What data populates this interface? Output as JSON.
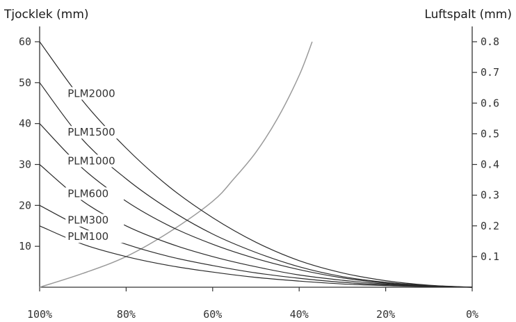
{
  "chart_data": {
    "type": "line",
    "left_axis": {
      "title": "Tjocklek (mm)",
      "ticks": [
        10,
        20,
        30,
        40,
        50,
        60
      ],
      "tick_labels": [
        "10",
        "20",
        "30",
        "40",
        "50",
        "60"
      ],
      "range": [
        0,
        60
      ]
    },
    "right_axis": {
      "title": "Luftspalt (mm)",
      "ticks": [
        0.1,
        0.2,
        0.3,
        0.4,
        0.5,
        0.6,
        0.7,
        0.8
      ],
      "tick_labels": [
        "0.1",
        "0.2",
        "0.3",
        "0.4",
        "0.5",
        "0.6",
        "0.7",
        "0.8"
      ],
      "range": [
        0,
        0.8
      ]
    },
    "x_axis": {
      "ticks": [
        100,
        80,
        60,
        40,
        20,
        0
      ],
      "tick_labels": [
        "100%",
        "80%",
        "60%",
        "40%",
        "20%",
        "0%"
      ],
      "range": [
        100,
        0
      ]
    },
    "x": [
      100,
      90,
      80,
      70,
      60,
      50,
      40,
      30,
      20,
      10,
      0
    ],
    "series": [
      {
        "name": "PLM2000",
        "axis": "left",
        "values": [
          60,
          45.5,
          34,
          24.5,
          17,
          11,
          6.5,
          3.5,
          1.6,
          0.5,
          0
        ]
      },
      {
        "name": "PLM1500",
        "axis": "left",
        "values": [
          50,
          36,
          26.5,
          19,
          13,
          8.5,
          5,
          2.6,
          1.2,
          0.4,
          0
        ]
      },
      {
        "name": "PLM1000",
        "axis": "left",
        "values": [
          40,
          29,
          21,
          15,
          10.5,
          7,
          4.3,
          2.3,
          1,
          0.3,
          0
        ]
      },
      {
        "name": "PLM600",
        "axis": "left",
        "values": [
          30,
          21,
          15,
          10.7,
          7.5,
          5,
          3,
          1.7,
          0.8,
          0.3,
          0
        ]
      },
      {
        "name": "PLM300",
        "axis": "left",
        "values": [
          20,
          14.5,
          10.5,
          7.5,
          5.3,
          3.5,
          2.2,
          1.2,
          0.6,
          0.2,
          0
        ]
      },
      {
        "name": "PLM100",
        "axis": "left",
        "values": [
          15,
          10.5,
          7.5,
          5.3,
          3.7,
          2.4,
          1.5,
          0.8,
          0.4,
          0.15,
          0
        ]
      },
      {
        "name": "",
        "axis": "right",
        "x": [
          100,
          90,
          80,
          70,
          60,
          55,
          50,
          45,
          40,
          37
        ],
        "values": [
          0,
          0.045,
          0.1,
          0.18,
          0.28,
          0.355,
          0.44,
          0.55,
          0.69,
          0.8
        ]
      }
    ],
    "series_label_anchor_x": [
      90,
      90,
      90,
      90,
      90,
      90
    ],
    "grid": false,
    "legend": "inline-labels"
  }
}
